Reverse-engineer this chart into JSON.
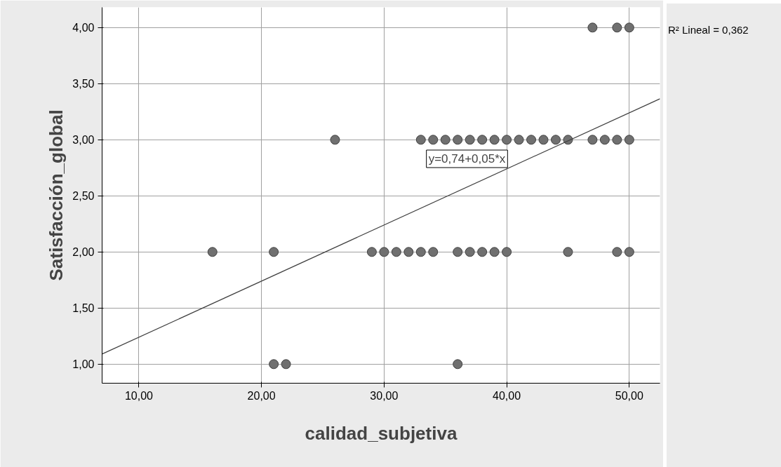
{
  "chart_data": {
    "type": "scatter",
    "xlabel": "calidad_subjetiva",
    "ylabel": "Satisfacción_global",
    "xlim": [
      7,
      52.5
    ],
    "ylim": [
      0.83,
      4.18
    ],
    "xticks": [
      {
        "value": 10,
        "label": "10,00"
      },
      {
        "value": 20,
        "label": "20,00"
      },
      {
        "value": 30,
        "label": "30,00"
      },
      {
        "value": 40,
        "label": "40,00"
      },
      {
        "value": 50,
        "label": "50,00"
      }
    ],
    "yticks": [
      {
        "value": 1,
        "label": "1,00"
      },
      {
        "value": 1.5,
        "label": "1,50"
      },
      {
        "value": 2,
        "label": "2,00"
      },
      {
        "value": 2.5,
        "label": "2,50"
      },
      {
        "value": 3,
        "label": "3,00"
      },
      {
        "value": 3.5,
        "label": "3,50"
      },
      {
        "value": 4,
        "label": "4,00"
      }
    ],
    "grid": true,
    "series": [
      {
        "marker": "circle",
        "color": "#707070",
        "x": [
          47,
          49,
          50,
          26,
          33,
          34,
          35,
          36,
          37,
          38,
          39,
          40,
          41,
          42,
          43,
          44,
          45,
          47,
          48,
          49,
          50,
          16,
          21,
          29,
          30,
          31,
          32,
          33,
          34,
          36,
          37,
          38,
          39,
          40,
          45,
          49,
          50,
          21,
          22,
          36
        ],
        "values": [
          4,
          4,
          4,
          3,
          3,
          3,
          3,
          3,
          3,
          3,
          3,
          3,
          3,
          3,
          3,
          3,
          3,
          3,
          3,
          3,
          3,
          2,
          2,
          2,
          2,
          2,
          2,
          2,
          2,
          2,
          2,
          2,
          2,
          2,
          2,
          2,
          2,
          1,
          1,
          1
        ]
      },
      {
        "type": "line",
        "color": "#404040",
        "x": [
          7,
          52.5
        ],
        "values": [
          1.09,
          3.365
        ]
      }
    ],
    "annotations": [
      "y=0,74+0,05*x",
      "R² Lineal = 0,362"
    ]
  }
}
